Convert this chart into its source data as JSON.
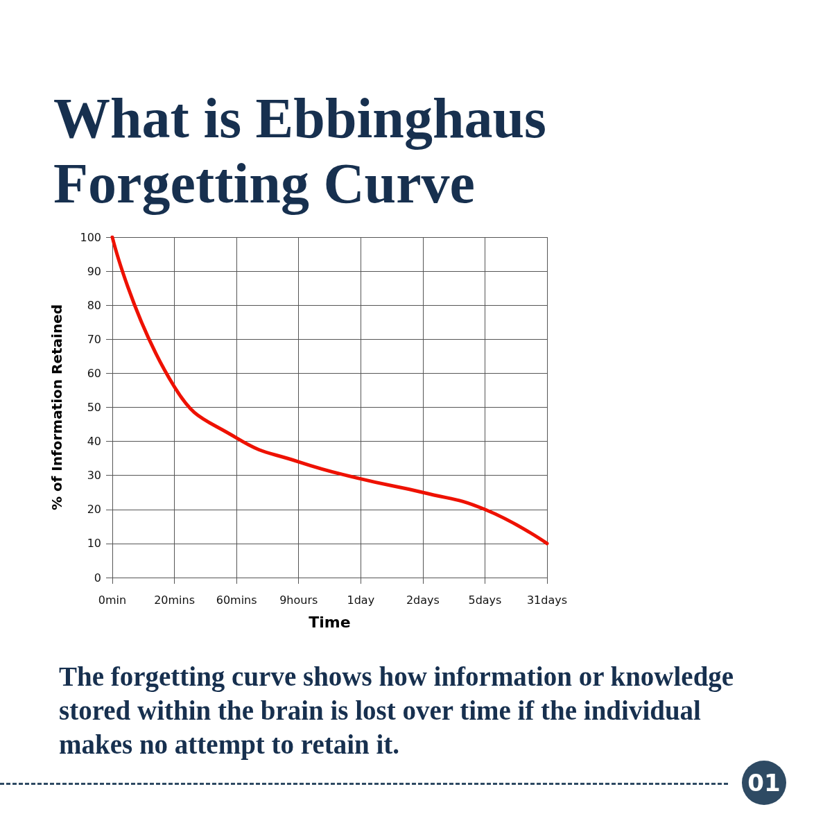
{
  "chart_data": {
    "type": "line",
    "title": "What is Ebbinghaus Forgetting Curve",
    "xlabel": "Time",
    "ylabel": "% of Information Retained",
    "categories": [
      "0min",
      "20mins",
      "60mins",
      "9hours",
      "1day",
      "2days",
      "5days",
      "31days"
    ],
    "values": [
      100,
      56,
      41,
      34,
      29,
      25,
      20,
      10
    ],
    "color": "#ee1100",
    "ylim": [
      0,
      100
    ],
    "yticks": [
      0,
      10,
      20,
      30,
      40,
      50,
      60,
      70,
      80,
      90,
      100
    ],
    "grid": true,
    "marker": "none",
    "line_style": "solid",
    "annotations": [
      "The forgetting curve shows how information or knowledge stored within the brain is lost over time if the individual makes no attempt to retain it.",
      "01"
    ]
  }
}
